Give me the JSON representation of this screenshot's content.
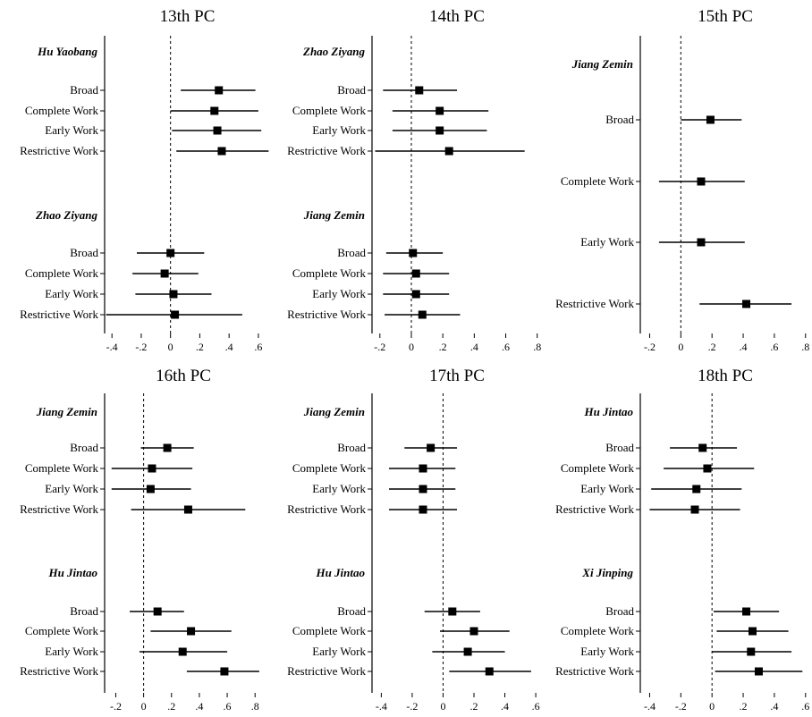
{
  "chart_data": [
    {
      "type": "scatter",
      "title": "13th PC",
      "xticks": [
        -0.4,
        -0.2,
        0,
        0.2,
        0.4,
        0.6
      ],
      "xtick_labels": [
        "-.4",
        "-.2",
        "0",
        ".2",
        ".4",
        ".6"
      ],
      "xlim": [
        -0.45,
        0.68
      ],
      "groups": [
        {
          "name": "Hu Yaobang",
          "rows": [
            {
              "label": "Broad",
              "est": 0.33,
              "lo": 0.07,
              "hi": 0.58
            },
            {
              "label": "Complete Work",
              "est": 0.3,
              "lo": 0.0,
              "hi": 0.6
            },
            {
              "label": "Early Work",
              "est": 0.32,
              "lo": 0.01,
              "hi": 0.62
            },
            {
              "label": "Restrictive Work",
              "est": 0.35,
              "lo": 0.04,
              "hi": 0.67
            }
          ]
        },
        {
          "name": "Zhao Ziyang",
          "rows": [
            {
              "label": "Broad",
              "est": 0.0,
              "lo": -0.23,
              "hi": 0.23
            },
            {
              "label": "Complete Work",
              "est": -0.04,
              "lo": -0.26,
              "hi": 0.19
            },
            {
              "label": "Early Work",
              "est": 0.02,
              "lo": -0.24,
              "hi": 0.28
            },
            {
              "label": "Restrictive Work",
              "est": 0.03,
              "lo": -0.44,
              "hi": 0.49
            }
          ]
        }
      ]
    },
    {
      "type": "scatter",
      "title": "14th PC",
      "xticks": [
        -0.2,
        0,
        0.2,
        0.4,
        0.6,
        0.8
      ],
      "xtick_labels": [
        "-.2",
        "0",
        ".2",
        ".4",
        ".6",
        ".8"
      ],
      "xlim": [
        -0.25,
        0.83
      ],
      "groups": [
        {
          "name": "Zhao Ziyang",
          "rows": [
            {
              "label": "Broad",
              "est": 0.05,
              "lo": -0.18,
              "hi": 0.29
            },
            {
              "label": "Complete Work",
              "est": 0.18,
              "lo": -0.12,
              "hi": 0.49
            },
            {
              "label": "Early Work",
              "est": 0.18,
              "lo": -0.12,
              "hi": 0.48
            },
            {
              "label": "Restrictive Work",
              "est": 0.24,
              "lo": -0.23,
              "hi": 0.72
            }
          ]
        },
        {
          "name": "Jiang Zemin",
          "rows": [
            {
              "label": "Broad",
              "est": 0.01,
              "lo": -0.16,
              "hi": 0.2
            },
            {
              "label": "Complete Work",
              "est": 0.03,
              "lo": -0.18,
              "hi": 0.24
            },
            {
              "label": "Early Work",
              "est": 0.03,
              "lo": -0.18,
              "hi": 0.24
            },
            {
              "label": "Restrictive Work",
              "est": 0.07,
              "lo": -0.17,
              "hi": 0.31
            }
          ]
        }
      ]
    },
    {
      "type": "scatter",
      "title": "15th PC",
      "xticks": [
        -0.2,
        0,
        0.2,
        0.4,
        0.6,
        0.8
      ],
      "xtick_labels": [
        "-.2",
        "0",
        ".2",
        ".4",
        ".6",
        ".8"
      ],
      "xlim": [
        -0.26,
        0.83
      ],
      "groups": [
        {
          "name": "Jiang Zemin",
          "rows": [
            {
              "label": "Broad",
              "est": 0.19,
              "lo": 0.0,
              "hi": 0.39
            },
            {
              "label": "Complete Work",
              "est": 0.13,
              "lo": -0.14,
              "hi": 0.41
            },
            {
              "label": "Early Work",
              "est": 0.13,
              "lo": -0.14,
              "hi": 0.41
            },
            {
              "label": "Restrictive Work",
              "est": 0.42,
              "lo": 0.12,
              "hi": 0.71
            }
          ]
        }
      ]
    },
    {
      "type": "scatter",
      "title": "16th PC",
      "xticks": [
        -0.2,
        0,
        0.2,
        0.4,
        0.6,
        0.8
      ],
      "xtick_labels": [
        "-.2",
        "0",
        ".2",
        ".4",
        ".6",
        ".8"
      ],
      "xlim": [
        -0.28,
        0.85
      ],
      "groups": [
        {
          "name": "Jiang Zemin",
          "rows": [
            {
              "label": "Broad",
              "est": 0.17,
              "lo": -0.02,
              "hi": 0.36
            },
            {
              "label": "Complete Work",
              "est": 0.06,
              "lo": -0.23,
              "hi": 0.35
            },
            {
              "label": "Early Work",
              "est": 0.05,
              "lo": -0.23,
              "hi": 0.34
            },
            {
              "label": "Restrictive Work",
              "est": 0.32,
              "lo": -0.09,
              "hi": 0.73
            }
          ]
        },
        {
          "name": "Hu Jintao",
          "rows": [
            {
              "label": "Broad",
              "est": 0.1,
              "lo": -0.1,
              "hi": 0.29
            },
            {
              "label": "Complete Work",
              "est": 0.34,
              "lo": 0.05,
              "hi": 0.63
            },
            {
              "label": "Early Work",
              "est": 0.28,
              "lo": -0.03,
              "hi": 0.6
            },
            {
              "label": "Restrictive Work",
              "est": 0.58,
              "lo": 0.31,
              "hi": 0.83
            }
          ]
        }
      ]
    },
    {
      "type": "scatter",
      "title": "17th PC",
      "xticks": [
        -0.4,
        -0.2,
        0,
        0.2,
        0.4,
        0.6
      ],
      "xtick_labels": [
        "-.4",
        "-.2",
        "0",
        ".2",
        ".4",
        ".6"
      ],
      "xlim": [
        -0.46,
        0.64
      ],
      "groups": [
        {
          "name": "Jiang Zemin",
          "rows": [
            {
              "label": "Broad",
              "est": -0.08,
              "lo": -0.25,
              "hi": 0.09
            },
            {
              "label": "Complete Work",
              "est": -0.13,
              "lo": -0.35,
              "hi": 0.08
            },
            {
              "label": "Early Work",
              "est": -0.13,
              "lo": -0.35,
              "hi": 0.08
            },
            {
              "label": "Restrictive Work",
              "est": -0.13,
              "lo": -0.35,
              "hi": 0.09
            }
          ]
        },
        {
          "name": "Hu Jintao",
          "rows": [
            {
              "label": "Broad",
              "est": 0.06,
              "lo": -0.12,
              "hi": 0.24
            },
            {
              "label": "Complete Work",
              "est": 0.2,
              "lo": -0.02,
              "hi": 0.43
            },
            {
              "label": "Early Work",
              "est": 0.16,
              "lo": -0.07,
              "hi": 0.4
            },
            {
              "label": "Restrictive Work",
              "est": 0.3,
              "lo": 0.04,
              "hi": 0.57
            }
          ]
        }
      ]
    },
    {
      "type": "scatter",
      "title": "18th PC",
      "xticks": [
        -0.4,
        -0.2,
        0,
        0.2,
        0.4,
        0.6
      ],
      "xtick_labels": [
        "-.4",
        "-.2",
        "0",
        ".2",
        ".4",
        ".6"
      ],
      "xlim": [
        -0.46,
        0.63
      ],
      "groups": [
        {
          "name": "Hu Jintao",
          "rows": [
            {
              "label": "Broad",
              "est": -0.06,
              "lo": -0.27,
              "hi": 0.16
            },
            {
              "label": "Complete Work",
              "est": -0.03,
              "lo": -0.31,
              "hi": 0.27
            },
            {
              "label": "Early Work",
              "est": -0.1,
              "lo": -0.39,
              "hi": 0.19
            },
            {
              "label": "Restrictive Work",
              "est": -0.11,
              "lo": -0.4,
              "hi": 0.18
            }
          ]
        },
        {
          "name": "Xi Jinping",
          "rows": [
            {
              "label": "Broad",
              "est": 0.22,
              "lo": 0.01,
              "hi": 0.43
            },
            {
              "label": "Complete Work",
              "est": 0.26,
              "lo": 0.03,
              "hi": 0.49
            },
            {
              "label": "Early Work",
              "est": 0.25,
              "lo": 0.0,
              "hi": 0.51
            },
            {
              "label": "Restrictive Work",
              "est": 0.3,
              "lo": 0.02,
              "hi": 0.58
            }
          ]
        }
      ]
    }
  ]
}
